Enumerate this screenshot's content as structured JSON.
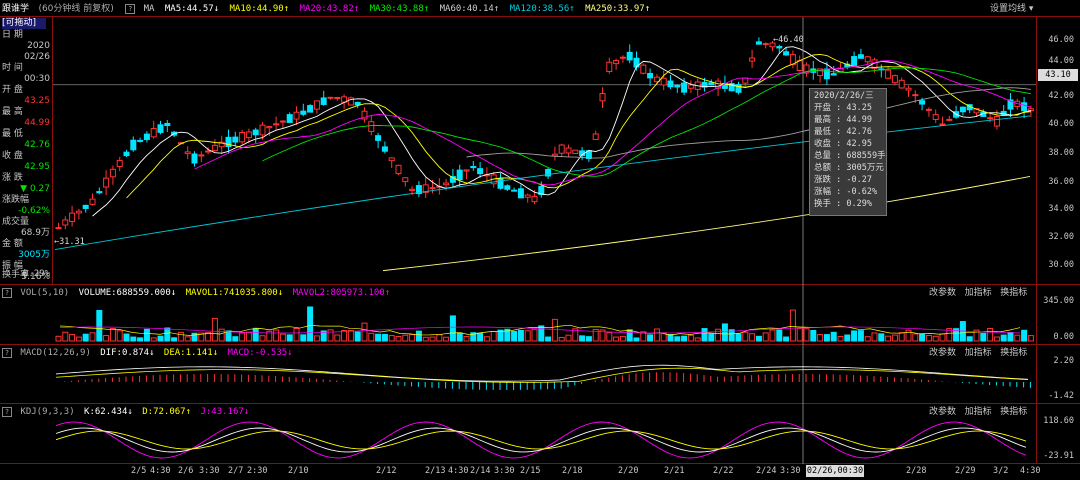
{
  "header": {
    "title": "跟谁学",
    "period": "(60分钟线 前复权)",
    "q": "?",
    "ma_label": "MA",
    "ma5": "MA5:44.57",
    "ma10": "MA10:44.90",
    "ma20": "MA20:43.82",
    "ma30": "MA30:43.88",
    "ma60": "MA60:40.14",
    "ma120": "MA120:38.56",
    "ma250": "MA250:33.97",
    "settings": "设置均线"
  },
  "left_panel": {
    "drag_label": "[可拖动]",
    "date_label": "日  期",
    "year": "2020",
    "date": "02/26",
    "time_label": "时  间",
    "time": "00:30",
    "open_label": "开  盘",
    "open": "43.25",
    "high_label": "最  高",
    "high": "44.99",
    "low_label": "最  低",
    "low": "42.76",
    "close_label": "收  盘",
    "close": "42.95",
    "change_label": "涨  跌",
    "change": "▼ 0.27",
    "pct_label": "涨跌幅",
    "pct": "-0.62%",
    "vol_label": "成交量",
    "vol": "68.9万",
    "amt_label": "金  额",
    "amt": "3005万",
    "amp_label": "振  幅",
    "amp": "5.16%",
    "turn_label": "换手率",
    "turn": "0.29%"
  },
  "tooltip": {
    "datetime": "2020/2/26/三",
    "open": "开盘 : 43.25",
    "high": "最高 : 44.99",
    "low": "最低 : 42.76",
    "close": "收盘 : 42.95",
    "volume": "总量 : 688559手",
    "amount": "总额 : 3005万元",
    "change": "涨跌 : -0.27",
    "pct": "涨幅 : -0.62%",
    "turnover": "换手 : 0.29%"
  },
  "price_axis": {
    "ticks": [
      "46.00",
      "44.00",
      "42.00",
      "40.00",
      "38.00",
      "36.00",
      "34.00",
      "32.00",
      "30.00"
    ],
    "current": "43.10",
    "high_mark": "46.40",
    "low_mark": "31.31"
  },
  "vol_panel": {
    "name": "VOL(5,10)",
    "volume": "VOLUME:688559.000",
    "mavol1": "MAVOL1:741035.800",
    "mavol2": "MAVOL2:805973.100",
    "ticks": [
      "345.00",
      "0.00"
    ]
  },
  "macd_panel": {
    "name": "MACD(12,26,9)",
    "dif": "DIF:0.874",
    "dea": "DEA:1.141",
    "macd": "MACD:-0.535",
    "ticks": [
      "2.20",
      "-1.42"
    ]
  },
  "kdj_panel": {
    "name": "KDJ(9,3,3)",
    "k": "K:62.434",
    "d": "D:72.067",
    "j": "J:43.167",
    "ticks": [
      "118.60",
      "-23.91"
    ]
  },
  "buttons": {
    "change_param": "改参数",
    "add_indicator": "加指标",
    "switch_indicator": "换指标"
  },
  "x_axis": {
    "labels": [
      "2/5",
      "4:30",
      "2/6",
      "3:30",
      "2/7",
      "2:30",
      "2/10",
      "2/12",
      "2/13",
      "4:30",
      "2/14",
      "3:30",
      "2/15",
      "2/18",
      "2/20",
      "2/21",
      "2/22",
      "2/24",
      "3:30",
      "2/28",
      "2/29",
      "3/2",
      "4:30"
    ],
    "cursor": "02/26,00:30"
  },
  "colors": {
    "up": "#ff3232",
    "down": "#00e5ff",
    "ma5": "#ffffff",
    "ma10": "#ffff00",
    "ma20": "#ff00ff",
    "ma30": "#00e600",
    "ma60": "#a0a0a0",
    "ma120": "#00c8d7",
    "ma250": "#ffff80"
  }
}
